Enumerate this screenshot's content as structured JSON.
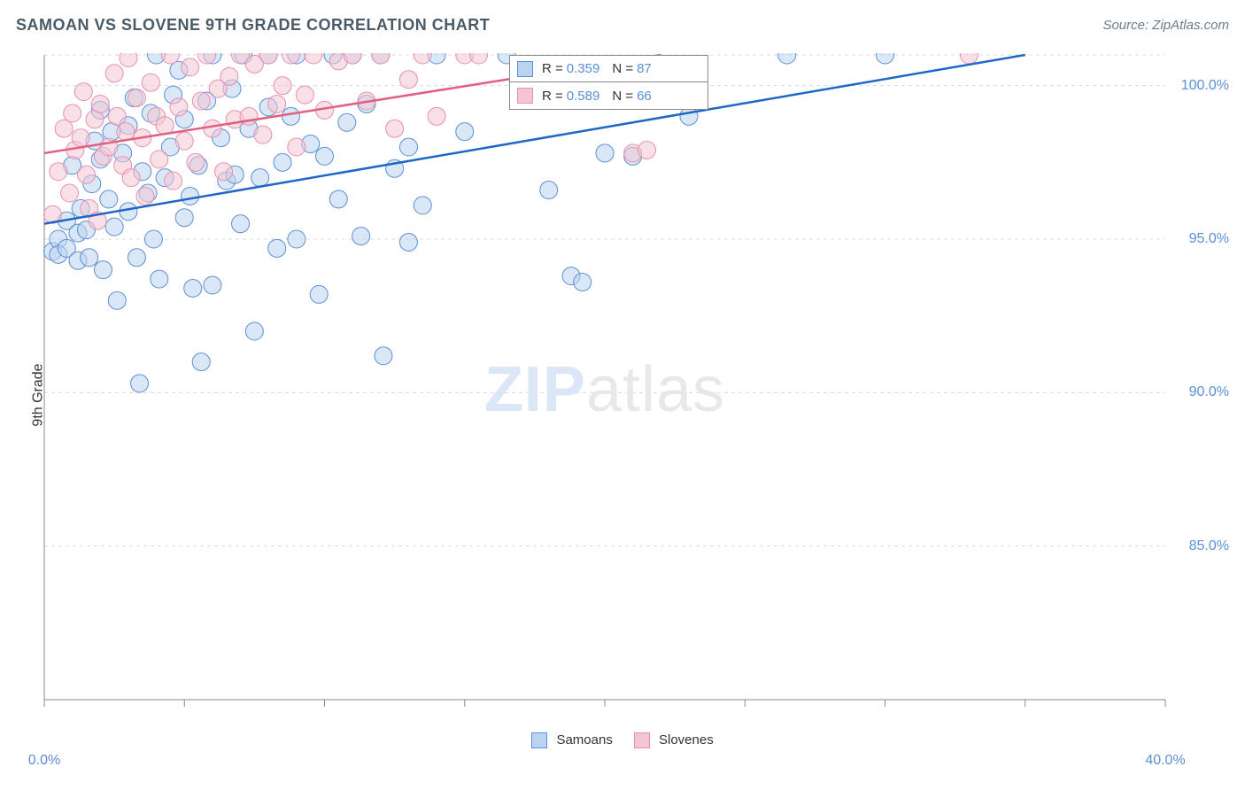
{
  "title": "SAMOAN VS SLOVENE 9TH GRADE CORRELATION CHART",
  "source_label": "Source: ZipAtlas.com",
  "y_axis_label": "9th Grade",
  "watermark_zip": "ZIP",
  "watermark_atlas": "atlas",
  "chart": {
    "type": "scatter",
    "xlim": [
      0,
      40
    ],
    "ylim": [
      80,
      101
    ],
    "x_ticks": [
      0,
      5,
      10,
      15,
      20,
      25,
      30,
      35,
      40
    ],
    "x_tick_labels": {
      "0": "0.0%",
      "40": "40.0%"
    },
    "y_grid": [
      85,
      90,
      95,
      100,
      101
    ],
    "y_tick_labels": {
      "85": "85.0%",
      "90": "90.0%",
      "95": "95.0%",
      "100": "100.0%"
    },
    "background_color": "#ffffff",
    "grid_color": "#d9d9d9",
    "grid_dash": "4,4",
    "axis_color": "#888888",
    "axis_width": 1,
    "tick_label_color": "#5b8fd6",
    "tick_label_fontsize": 16,
    "y_label_fontsize": 16,
    "title_fontsize": 18,
    "title_color": "#4a5a66",
    "marker_radius": 10,
    "marker_opacity": 0.55,
    "series": [
      {
        "name": "Samoans",
        "color_fill": "#b9d3f0",
        "color_stroke": "#5b8fd6",
        "trend_color": "#1f67c7",
        "trend_width": 2.5,
        "trend": {
          "x1": 0,
          "y1": 95.5,
          "x2": 35,
          "y2": 101
        },
        "R": 0.359,
        "R_str": "0.359",
        "N": 87,
        "N_str": "87",
        "points": [
          [
            0.3,
            94.6
          ],
          [
            0.5,
            95.0
          ],
          [
            0.5,
            94.5
          ],
          [
            0.8,
            94.7
          ],
          [
            0.8,
            95.6
          ],
          [
            1.0,
            97.4
          ],
          [
            1.2,
            94.3
          ],
          [
            1.2,
            95.2
          ],
          [
            1.3,
            96.0
          ],
          [
            1.5,
            95.3
          ],
          [
            1.6,
            94.4
          ],
          [
            1.7,
            96.8
          ],
          [
            1.8,
            98.2
          ],
          [
            2.0,
            99.2
          ],
          [
            2.0,
            97.6
          ],
          [
            2.1,
            94.0
          ],
          [
            2.3,
            96.3
          ],
          [
            2.4,
            98.5
          ],
          [
            2.5,
            95.4
          ],
          [
            2.6,
            93.0
          ],
          [
            2.8,
            97.8
          ],
          [
            3.0,
            98.7
          ],
          [
            3.0,
            95.9
          ],
          [
            3.2,
            99.6
          ],
          [
            3.3,
            94.4
          ],
          [
            3.4,
            90.3
          ],
          [
            3.5,
            97.2
          ],
          [
            3.7,
            96.5
          ],
          [
            3.8,
            99.1
          ],
          [
            3.9,
            95.0
          ],
          [
            4.0,
            101.0
          ],
          [
            4.1,
            93.7
          ],
          [
            4.3,
            97.0
          ],
          [
            4.5,
            98.0
          ],
          [
            4.6,
            99.7
          ],
          [
            4.8,
            100.5
          ],
          [
            5.0,
            95.7
          ],
          [
            5.0,
            98.9
          ],
          [
            5.2,
            96.4
          ],
          [
            5.3,
            93.4
          ],
          [
            5.5,
            97.4
          ],
          [
            5.6,
            91.0
          ],
          [
            5.8,
            99.5
          ],
          [
            6.0,
            101.0
          ],
          [
            6.0,
            93.5
          ],
          [
            6.3,
            98.3
          ],
          [
            6.5,
            96.9
          ],
          [
            6.7,
            99.9
          ],
          [
            6.8,
            97.1
          ],
          [
            7.0,
            95.5
          ],
          [
            7.1,
            101.0
          ],
          [
            7.3,
            98.6
          ],
          [
            7.5,
            92.0
          ],
          [
            7.7,
            97.0
          ],
          [
            8.0,
            99.3
          ],
          [
            8.0,
            101.0
          ],
          [
            8.3,
            94.7
          ],
          [
            8.5,
            97.5
          ],
          [
            8.8,
            99.0
          ],
          [
            9.0,
            101.0
          ],
          [
            9.0,
            95.0
          ],
          [
            9.5,
            98.1
          ],
          [
            9.8,
            93.2
          ],
          [
            10.0,
            97.7
          ],
          [
            10.3,
            101.0
          ],
          [
            10.5,
            96.3
          ],
          [
            10.8,
            98.8
          ],
          [
            11.0,
            101.0
          ],
          [
            11.3,
            95.1
          ],
          [
            11.5,
            99.4
          ],
          [
            12.0,
            101.0
          ],
          [
            12.1,
            91.2
          ],
          [
            12.5,
            97.3
          ],
          [
            13.0,
            98.0
          ],
          [
            13.0,
            94.9
          ],
          [
            13.5,
            96.1
          ],
          [
            14.0,
            101.0
          ],
          [
            15.0,
            98.5
          ],
          [
            16.5,
            101.0
          ],
          [
            18.0,
            96.6
          ],
          [
            18.8,
            93.8
          ],
          [
            19.2,
            93.6
          ],
          [
            20.0,
            97.8
          ],
          [
            21.0,
            97.7
          ],
          [
            23.0,
            99.0
          ],
          [
            26.5,
            101.0
          ],
          [
            30.0,
            101.0
          ]
        ]
      },
      {
        "name": "Slovenes",
        "color_fill": "#f4c6d4",
        "color_stroke": "#e78fb0",
        "trend_color": "#e2607f",
        "trend_width": 2.5,
        "trend": {
          "x1": 0,
          "y1": 97.8,
          "x2": 22,
          "y2": 101
        },
        "R": 0.589,
        "R_str": "0.589",
        "N": 66,
        "N_str": "66",
        "points": [
          [
            0.3,
            95.8
          ],
          [
            0.5,
            97.2
          ],
          [
            0.7,
            98.6
          ],
          [
            0.9,
            96.5
          ],
          [
            1.0,
            99.1
          ],
          [
            1.1,
            97.9
          ],
          [
            1.3,
            98.3
          ],
          [
            1.4,
            99.8
          ],
          [
            1.5,
            97.1
          ],
          [
            1.6,
            96.0
          ],
          [
            1.8,
            98.9
          ],
          [
            1.9,
            95.6
          ],
          [
            2.0,
            99.4
          ],
          [
            2.1,
            97.7
          ],
          [
            2.3,
            98.0
          ],
          [
            2.5,
            100.4
          ],
          [
            2.6,
            99.0
          ],
          [
            2.8,
            97.4
          ],
          [
            2.9,
            98.5
          ],
          [
            3.0,
            100.9
          ],
          [
            3.1,
            97.0
          ],
          [
            3.3,
            99.6
          ],
          [
            3.5,
            98.3
          ],
          [
            3.6,
            96.4
          ],
          [
            3.8,
            100.1
          ],
          [
            4.0,
            99.0
          ],
          [
            4.1,
            97.6
          ],
          [
            4.3,
            98.7
          ],
          [
            4.5,
            101.0
          ],
          [
            4.6,
            96.9
          ],
          [
            4.8,
            99.3
          ],
          [
            5.0,
            98.2
          ],
          [
            5.2,
            100.6
          ],
          [
            5.4,
            97.5
          ],
          [
            5.6,
            99.5
          ],
          [
            5.8,
            101.0
          ],
          [
            6.0,
            98.6
          ],
          [
            6.2,
            99.9
          ],
          [
            6.4,
            97.2
          ],
          [
            6.6,
            100.3
          ],
          [
            6.8,
            98.9
          ],
          [
            7.0,
            101.0
          ],
          [
            7.3,
            99.0
          ],
          [
            7.5,
            100.7
          ],
          [
            7.8,
            98.4
          ],
          [
            8.0,
            101.0
          ],
          [
            8.3,
            99.4
          ],
          [
            8.5,
            100.0
          ],
          [
            8.8,
            101.0
          ],
          [
            9.0,
            98.0
          ],
          [
            9.3,
            99.7
          ],
          [
            9.6,
            101.0
          ],
          [
            10.0,
            99.2
          ],
          [
            10.5,
            100.8
          ],
          [
            11.0,
            101.0
          ],
          [
            11.5,
            99.5
          ],
          [
            12.0,
            101.0
          ],
          [
            12.5,
            98.6
          ],
          [
            13.0,
            100.2
          ],
          [
            13.5,
            101.0
          ],
          [
            14.0,
            99.0
          ],
          [
            15.0,
            101.0
          ],
          [
            15.5,
            101.0
          ],
          [
            21.0,
            97.8
          ],
          [
            21.5,
            97.9
          ],
          [
            33.0,
            101.0
          ]
        ]
      }
    ]
  },
  "bottom_legend": {
    "items": [
      {
        "name": "Samoans",
        "label": "Samoans",
        "swatch_fill": "#b9d3f0",
        "swatch_stroke": "#5b8fd6"
      },
      {
        "name": "Slovenes",
        "label": "Slovenes",
        "swatch_fill": "#f4c6d4",
        "swatch_stroke": "#e78fb0"
      }
    ]
  },
  "top_legend": {
    "R_label": "R =",
    "N_label": "N ="
  }
}
